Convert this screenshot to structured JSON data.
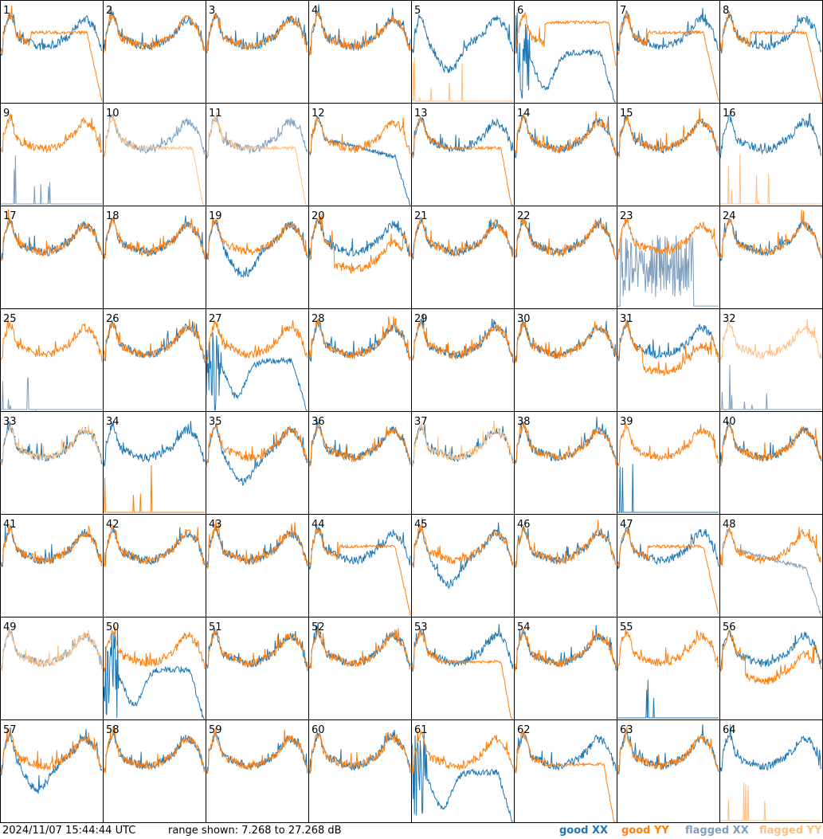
{
  "footer": {
    "timestamp": "2024/11/07 15:44:44 UTC",
    "range_text": "range shown: 7.268 to 27.268 dB"
  },
  "legend": [
    {
      "label": "good XX",
      "color": "#1f77b4"
    },
    {
      "label": "good YY",
      "color": "#ff7f0e"
    },
    {
      "label": "flagged XX",
      "color": "#7f9fbf"
    },
    {
      "label": "flagged YY",
      "color": "#ffbf80"
    }
  ],
  "chart_data": {
    "type": "line",
    "ylim": [
      7.268,
      27.268
    ],
    "yunit": "dB",
    "grid": {
      "rows": 8,
      "cols": 8
    },
    "panels": [
      {
        "label": "1",
        "xx": {
          "shape": "rising",
          "flag": false
        },
        "yy": {
          "shape": "dropoff",
          "flag": false
        }
      },
      {
        "label": "2",
        "xx": {
          "shape": "normal",
          "flag": false
        },
        "yy": {
          "shape": "normal",
          "flag": false
        }
      },
      {
        "label": "3",
        "xx": {
          "shape": "normal",
          "flag": false
        },
        "yy": {
          "shape": "normal",
          "flag": false
        }
      },
      {
        "label": "4",
        "xx": {
          "shape": "normal",
          "flag": false
        },
        "yy": {
          "shape": "normal",
          "flag": false
        }
      },
      {
        "label": "5",
        "xx": {
          "shape": "dip",
          "flag": false
        },
        "yy": {
          "shape": "spikes",
          "flag": true
        }
      },
      {
        "label": "6",
        "xx": {
          "shape": "sag",
          "flag": false
        },
        "yy": {
          "shape": "flat",
          "flag": false
        }
      },
      {
        "label": "7",
        "xx": {
          "shape": "normal",
          "flag": false
        },
        "yy": {
          "shape": "dropoff",
          "flag": false
        }
      },
      {
        "label": "8",
        "xx": {
          "shape": "normal",
          "flag": false
        },
        "yy": {
          "shape": "dropoff",
          "flag": false
        }
      },
      {
        "label": "9",
        "xx": {
          "shape": "spikes",
          "flag": true
        },
        "yy": {
          "shape": "normal",
          "flag": false
        }
      },
      {
        "label": "10",
        "xx": {
          "shape": "normal",
          "flag": true
        },
        "yy": {
          "shape": "lowdrop",
          "flag": true
        }
      },
      {
        "label": "11",
        "xx": {
          "shape": "normal",
          "flag": true
        },
        "yy": {
          "shape": "lowdrop",
          "flag": true
        }
      },
      {
        "label": "12",
        "xx": {
          "shape": "decline",
          "flag": false
        },
        "yy": {
          "shape": "normal",
          "flag": false
        }
      },
      {
        "label": "13",
        "xx": {
          "shape": "normal",
          "flag": false
        },
        "yy": {
          "shape": "lowdrop",
          "flag": false
        }
      },
      {
        "label": "14",
        "xx": {
          "shape": "normal",
          "flag": false
        },
        "yy": {
          "shape": "normal",
          "flag": false
        }
      },
      {
        "label": "15",
        "xx": {
          "shape": "normal",
          "flag": false
        },
        "yy": {
          "shape": "normal",
          "flag": false
        }
      },
      {
        "label": "16",
        "xx": {
          "shape": "normal",
          "flag": false
        },
        "yy": {
          "shape": "spikes",
          "flag": true
        }
      },
      {
        "label": "17",
        "xx": {
          "shape": "normal",
          "flag": false
        },
        "yy": {
          "shape": "normal",
          "flag": false
        }
      },
      {
        "label": "18",
        "xx": {
          "shape": "normal",
          "flag": false
        },
        "yy": {
          "shape": "normal",
          "flag": false
        }
      },
      {
        "label": "19",
        "xx": {
          "shape": "dip",
          "flag": false
        },
        "yy": {
          "shape": "normal",
          "flag": false
        }
      },
      {
        "label": "20",
        "xx": {
          "shape": "normal",
          "flag": false
        },
        "yy": {
          "shape": "lowmid",
          "flag": false
        }
      },
      {
        "label": "21",
        "xx": {
          "shape": "normal",
          "flag": false
        },
        "yy": {
          "shape": "normal",
          "flag": false
        }
      },
      {
        "label": "22",
        "xx": {
          "shape": "normal",
          "flag": false
        },
        "yy": {
          "shape": "normal",
          "flag": false
        }
      },
      {
        "label": "23",
        "xx": {
          "shape": "noise",
          "flag": true
        },
        "yy": {
          "shape": "normal",
          "flag": false
        }
      },
      {
        "label": "24",
        "xx": {
          "shape": "normal",
          "flag": false
        },
        "yy": {
          "shape": "normal",
          "flag": false
        }
      },
      {
        "label": "25",
        "xx": {
          "shape": "spikes",
          "flag": true
        },
        "yy": {
          "shape": "normal",
          "flag": false
        }
      },
      {
        "label": "26",
        "xx": {
          "shape": "normal",
          "flag": false
        },
        "yy": {
          "shape": "normal",
          "flag": false
        }
      },
      {
        "label": "27",
        "xx": {
          "shape": "sag",
          "flag": false
        },
        "yy": {
          "shape": "normal",
          "flag": false
        }
      },
      {
        "label": "28",
        "xx": {
          "shape": "normal",
          "flag": false
        },
        "yy": {
          "shape": "normal",
          "flag": false
        }
      },
      {
        "label": "29",
        "xx": {
          "shape": "normal",
          "flag": false
        },
        "yy": {
          "shape": "normal",
          "flag": false
        }
      },
      {
        "label": "30",
        "xx": {
          "shape": "normal",
          "flag": false
        },
        "yy": {
          "shape": "normal",
          "flag": false
        }
      },
      {
        "label": "31",
        "xx": {
          "shape": "normal",
          "flag": false
        },
        "yy": {
          "shape": "lowmid",
          "flag": false
        }
      },
      {
        "label": "32",
        "xx": {
          "shape": "spikes",
          "flag": true
        },
        "yy": {
          "shape": "normal",
          "flag": true
        }
      },
      {
        "label": "33",
        "xx": {
          "shape": "normal",
          "flag": false
        },
        "yy": {
          "shape": "normal",
          "flag": true
        }
      },
      {
        "label": "34",
        "xx": {
          "shape": "normal",
          "flag": false
        },
        "yy": {
          "shape": "spikes",
          "flag": false
        }
      },
      {
        "label": "35",
        "xx": {
          "shape": "dip",
          "flag": false
        },
        "yy": {
          "shape": "normal",
          "flag": false
        }
      },
      {
        "label": "36",
        "xx": {
          "shape": "normal",
          "flag": false
        },
        "yy": {
          "shape": "normal",
          "flag": false
        }
      },
      {
        "label": "37",
        "xx": {
          "shape": "normal",
          "flag": false
        },
        "yy": {
          "shape": "normal",
          "flag": true
        }
      },
      {
        "label": "38",
        "xx": {
          "shape": "normal",
          "flag": false
        },
        "yy": {
          "shape": "normal",
          "flag": false
        }
      },
      {
        "label": "39",
        "xx": {
          "shape": "spikes",
          "flag": false
        },
        "yy": {
          "shape": "normal",
          "flag": false
        }
      },
      {
        "label": "40",
        "xx": {
          "shape": "normal",
          "flag": false
        },
        "yy": {
          "shape": "normal",
          "flag": false
        }
      },
      {
        "label": "41",
        "xx": {
          "shape": "normal",
          "flag": false
        },
        "yy": {
          "shape": "normal",
          "flag": false
        }
      },
      {
        "label": "42",
        "xx": {
          "shape": "normal",
          "flag": false
        },
        "yy": {
          "shape": "normal",
          "flag": false
        }
      },
      {
        "label": "43",
        "xx": {
          "shape": "normal",
          "flag": false
        },
        "yy": {
          "shape": "normal",
          "flag": false
        }
      },
      {
        "label": "44",
        "xx": {
          "shape": "normal",
          "flag": false
        },
        "yy": {
          "shape": "dropoff",
          "flag": false
        }
      },
      {
        "label": "45",
        "xx": {
          "shape": "dip",
          "flag": false
        },
        "yy": {
          "shape": "normal",
          "flag": false
        }
      },
      {
        "label": "46",
        "xx": {
          "shape": "normal",
          "flag": false
        },
        "yy": {
          "shape": "normal",
          "flag": false
        }
      },
      {
        "label": "47",
        "xx": {
          "shape": "normal",
          "flag": false
        },
        "yy": {
          "shape": "dropoff",
          "flag": false
        }
      },
      {
        "label": "48",
        "xx": {
          "shape": "decline",
          "flag": true
        },
        "yy": {
          "shape": "normal",
          "flag": false
        }
      },
      {
        "label": "49",
        "xx": {
          "shape": "normal",
          "flag": true
        },
        "yy": {
          "shape": "normal",
          "flag": true
        }
      },
      {
        "label": "50",
        "xx": {
          "shape": "sag",
          "flag": false
        },
        "yy": {
          "shape": "normal",
          "flag": false
        }
      },
      {
        "label": "51",
        "xx": {
          "shape": "normal",
          "flag": false
        },
        "yy": {
          "shape": "normal",
          "flag": false
        }
      },
      {
        "label": "52",
        "xx": {
          "shape": "normal",
          "flag": false
        },
        "yy": {
          "shape": "normal",
          "flag": false
        }
      },
      {
        "label": "53",
        "xx": {
          "shape": "normal",
          "flag": false
        },
        "yy": {
          "shape": "lowdrop",
          "flag": false
        }
      },
      {
        "label": "54",
        "xx": {
          "shape": "normal",
          "flag": false
        },
        "yy": {
          "shape": "normal",
          "flag": false
        }
      },
      {
        "label": "55",
        "xx": {
          "shape": "spikes",
          "flag": false
        },
        "yy": {
          "shape": "normal",
          "flag": false
        }
      },
      {
        "label": "56",
        "xx": {
          "shape": "normal",
          "flag": false
        },
        "yy": {
          "shape": "lowmid",
          "flag": false
        }
      },
      {
        "label": "57",
        "xx": {
          "shape": "dip",
          "flag": false
        },
        "yy": {
          "shape": "normal",
          "flag": false
        }
      },
      {
        "label": "58",
        "xx": {
          "shape": "normal",
          "flag": false
        },
        "yy": {
          "shape": "normal",
          "flag": false
        }
      },
      {
        "label": "59",
        "xx": {
          "shape": "normal",
          "flag": false
        },
        "yy": {
          "shape": "normal",
          "flag": false
        }
      },
      {
        "label": "60",
        "xx": {
          "shape": "normal",
          "flag": false
        },
        "yy": {
          "shape": "normal",
          "flag": false
        }
      },
      {
        "label": "61",
        "xx": {
          "shape": "sag",
          "flag": false
        },
        "yy": {
          "shape": "normal",
          "flag": false
        }
      },
      {
        "label": "62",
        "xx": {
          "shape": "normal",
          "flag": false
        },
        "yy": {
          "shape": "lowdrop",
          "flag": false
        }
      },
      {
        "label": "63",
        "xx": {
          "shape": "normal",
          "flag": false
        },
        "yy": {
          "shape": "normal",
          "flag": false
        }
      },
      {
        "label": "64",
        "xx": {
          "shape": "normal",
          "flag": false
        },
        "yy": {
          "shape": "spikes",
          "flag": true
        }
      }
    ]
  }
}
